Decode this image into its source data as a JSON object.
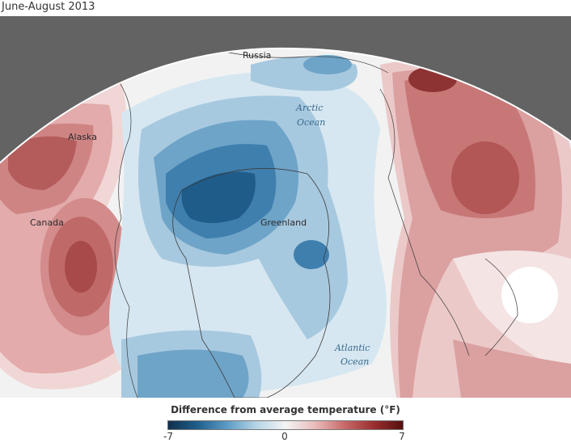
{
  "title": "June-August 2013",
  "labels": {
    "russia": "Russia",
    "alaska": "Alaska",
    "canada": "Canada",
    "greenland": "Greenland",
    "arctic_ocean_1": "Arctic",
    "arctic_ocean_2": "Ocean",
    "atlantic_ocean_1": "Atlantic",
    "atlantic_ocean_2": "Ocean"
  },
  "legend": {
    "title": "Difference from average temperature (°F)",
    "min": "-7",
    "mid": "0",
    "max": "7",
    "colors": {
      "cold_extreme": "#10304d",
      "neutral": "#f4f4f4",
      "warm_extreme": "#551010"
    }
  }
}
